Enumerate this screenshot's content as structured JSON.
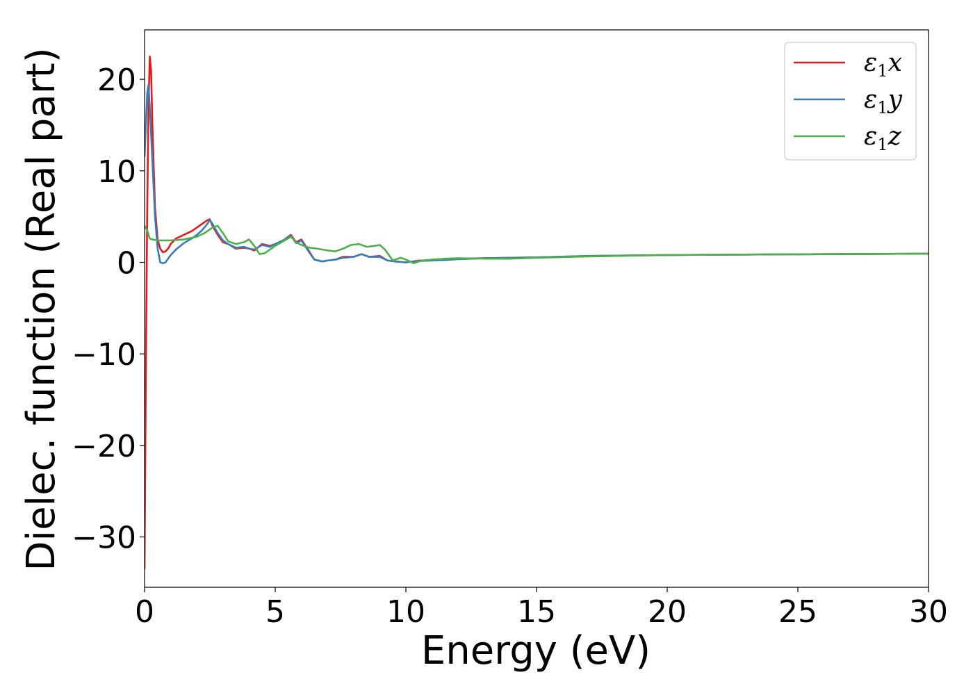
{
  "chart_data": {
    "type": "line",
    "title": "",
    "xlabel": "Energy (eV)",
    "ylabel": "Dielec. function (Real part)",
    "xlim": [
      0,
      30
    ],
    "ylim": [
      -35.5,
      25.4
    ],
    "xticks": [
      0,
      5,
      10,
      15,
      20,
      25,
      30
    ],
    "xtick_labels": [
      "0",
      "5",
      "10",
      "15",
      "20",
      "25",
      "30"
    ],
    "yticks": [
      -30,
      -20,
      -10,
      0,
      10,
      20
    ],
    "ytick_labels": [
      "−30",
      "−20",
      "−10",
      "0",
      "10",
      "20"
    ],
    "grid": false,
    "legend_position": "top-right",
    "series": [
      {
        "name": "ε1x",
        "legend_base": "ε",
        "legend_sub": "1",
        "legend_var": "x",
        "color": "#e41a1c",
        "x": [
          0,
          0.05,
          0.1,
          0.15,
          0.2,
          0.25,
          0.3,
          0.4,
          0.5,
          0.6,
          0.7,
          0.8,
          0.9,
          1.0,
          1.2,
          1.5,
          1.8,
          2.0,
          2.2,
          2.4,
          2.5,
          2.6,
          2.8,
          3.0,
          3.2,
          3.5,
          3.8,
          4.0,
          4.2,
          4.5,
          4.8,
          5.0,
          5.3,
          5.6,
          5.8,
          6.0,
          6.3,
          6.5,
          6.8,
          7.0,
          7.3,
          7.6,
          8.0,
          8.3,
          8.6,
          9.0,
          9.3,
          9.6,
          10.0,
          10.5,
          11.0,
          11.5,
          12.0,
          13.0,
          14.0,
          15.0,
          17.0,
          20.0,
          23.0,
          26.0,
          30.0
        ],
        "y": [
          -33.5,
          -12,
          5,
          17,
          22.5,
          21,
          15,
          6,
          2.5,
          1.5,
          1.1,
          1.2,
          1.5,
          2.0,
          2.6,
          3.0,
          3.4,
          3.8,
          4.2,
          4.6,
          4.7,
          4.0,
          3.0,
          2.2,
          2.0,
          1.5,
          1.6,
          1.5,
          1.3,
          2.0,
          1.8,
          2.0,
          2.4,
          3.0,
          2.2,
          2.5,
          1.2,
          0.3,
          0.1,
          0.2,
          0.3,
          0.6,
          0.6,
          0.9,
          0.6,
          0.7,
          0.2,
          0.1,
          0.0,
          0.2,
          0.2,
          0.3,
          0.4,
          0.45,
          0.5,
          0.55,
          0.7,
          0.8,
          0.85,
          0.9,
          0.95
        ]
      },
      {
        "name": "ε1y",
        "legend_base": "ε",
        "legend_sub": "1",
        "legend_var": "y",
        "color": "#377eb8",
        "x": [
          0,
          0.05,
          0.1,
          0.15,
          0.2,
          0.3,
          0.4,
          0.5,
          0.6,
          0.7,
          0.8,
          0.9,
          1.0,
          1.2,
          1.5,
          1.8,
          2.0,
          2.2,
          2.4,
          2.5,
          2.6,
          2.8,
          3.0,
          3.2,
          3.5,
          3.8,
          4.0,
          4.2,
          4.5,
          4.8,
          5.0,
          5.3,
          5.6,
          5.8,
          6.0,
          6.3,
          6.5,
          6.8,
          7.0,
          7.3,
          7.6,
          8.0,
          8.3,
          8.6,
          9.0,
          9.3,
          9.6,
          10.0,
          10.5,
          11.0,
          11.5,
          12.0,
          13.0,
          14.0,
          15.0,
          17.0,
          20.0,
          23.0,
          26.0,
          30.0
        ],
        "y": [
          11.5,
          15,
          18.5,
          19.4,
          17,
          11,
          5,
          1.5,
          0.0,
          -0.1,
          0.0,
          0.4,
          0.8,
          1.4,
          2.1,
          2.6,
          3.0,
          3.5,
          4.2,
          4.6,
          4.2,
          3.2,
          2.4,
          2.0,
          1.6,
          1.7,
          1.5,
          1.4,
          1.9,
          1.7,
          2.0,
          2.4,
          2.9,
          2.1,
          2.4,
          1.1,
          0.3,
          0.1,
          0.2,
          0.3,
          0.5,
          0.6,
          0.9,
          0.6,
          0.6,
          0.2,
          0.1,
          0.0,
          0.15,
          0.2,
          0.25,
          0.35,
          0.45,
          0.5,
          0.55,
          0.7,
          0.8,
          0.85,
          0.9,
          0.95
        ]
      },
      {
        "name": "ε1z",
        "legend_base": "ε",
        "legend_sub": "1",
        "legend_var": "z",
        "color": "#4daf4a",
        "x": [
          0,
          0.1,
          0.2,
          0.3,
          0.5,
          0.8,
          1.0,
          1.5,
          2.0,
          2.3,
          2.6,
          2.8,
          3.0,
          3.2,
          3.5,
          3.8,
          4.0,
          4.2,
          4.4,
          4.6,
          5.0,
          5.3,
          5.6,
          5.8,
          6.0,
          6.3,
          6.6,
          7.0,
          7.3,
          7.6,
          7.9,
          8.2,
          8.5,
          8.8,
          9.0,
          9.2,
          9.5,
          9.8,
          10.0,
          10.3,
          10.6,
          11.0,
          11.5,
          12.0,
          13.0,
          14.0,
          15.0,
          17.0,
          20.0,
          23.0,
          26.0,
          30.0
        ],
        "y": [
          4.0,
          3.5,
          2.6,
          2.5,
          2.4,
          2.4,
          2.4,
          2.5,
          2.8,
          3.2,
          3.8,
          4.0,
          3.2,
          2.3,
          2.0,
          2.2,
          2.5,
          1.8,
          0.9,
          1.0,
          1.8,
          2.3,
          2.8,
          2.2,
          1.9,
          1.6,
          1.5,
          1.3,
          1.2,
          1.5,
          1.9,
          2.0,
          1.7,
          1.8,
          1.9,
          1.4,
          0.2,
          0.5,
          0.3,
          -0.1,
          0.2,
          0.3,
          0.4,
          0.45,
          0.4,
          0.4,
          0.5,
          0.65,
          0.8,
          0.85,
          0.9,
          0.95
        ]
      }
    ]
  }
}
